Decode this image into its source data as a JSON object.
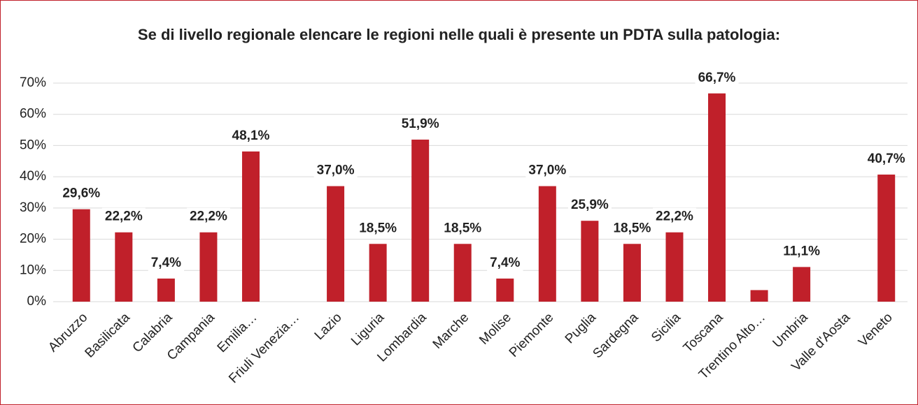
{
  "chart_data": {
    "type": "bar",
    "title": "Se di livello regionale elencare le regioni nelle quali è presente un PDTA sulla patologia:",
    "categories": [
      "Abruzzo",
      "Basilicata",
      "Calabria",
      "Campania",
      "Emilia…",
      "Friuli Venezia…",
      "Lazio",
      "Liguria",
      "Lombardia",
      "Marche",
      "Molise",
      "Piemonte",
      "Puglia",
      "Sardegna",
      "Sicilia",
      "Toscana",
      "Trentino Alto…",
      "Umbria",
      "Valle d'Aosta",
      "Veneto"
    ],
    "values": [
      29.6,
      22.2,
      7.4,
      22.2,
      48.1,
      0,
      37.0,
      18.5,
      51.9,
      18.5,
      7.4,
      37.0,
      25.9,
      18.5,
      22.2,
      66.7,
      3.7,
      11.1,
      0,
      40.7
    ],
    "value_labels": [
      "29,6%",
      "22,2%",
      "7,4%",
      "22,2%",
      "48,1%",
      null,
      "37,0%",
      "18,5%",
      "51,9%",
      "18,5%",
      "7,4%",
      "37,0%",
      "25,9%",
      "18,5%",
      "22,2%",
      "66,7%",
      null,
      "11,1%",
      null,
      "40,7%"
    ],
    "color": "#c0202a",
    "ylim": [
      0,
      70
    ],
    "yticks": [
      {
        "value": 0,
        "label": "0%"
      },
      {
        "value": 10,
        "label": "10%"
      },
      {
        "value": 20,
        "label": "20%"
      },
      {
        "value": 30,
        "label": "30%"
      },
      {
        "value": 40,
        "label": "40%"
      },
      {
        "value": 50,
        "label": "50%"
      },
      {
        "value": 60,
        "label": "60%"
      },
      {
        "value": 70,
        "label": "70%"
      }
    ],
    "grid": true
  }
}
